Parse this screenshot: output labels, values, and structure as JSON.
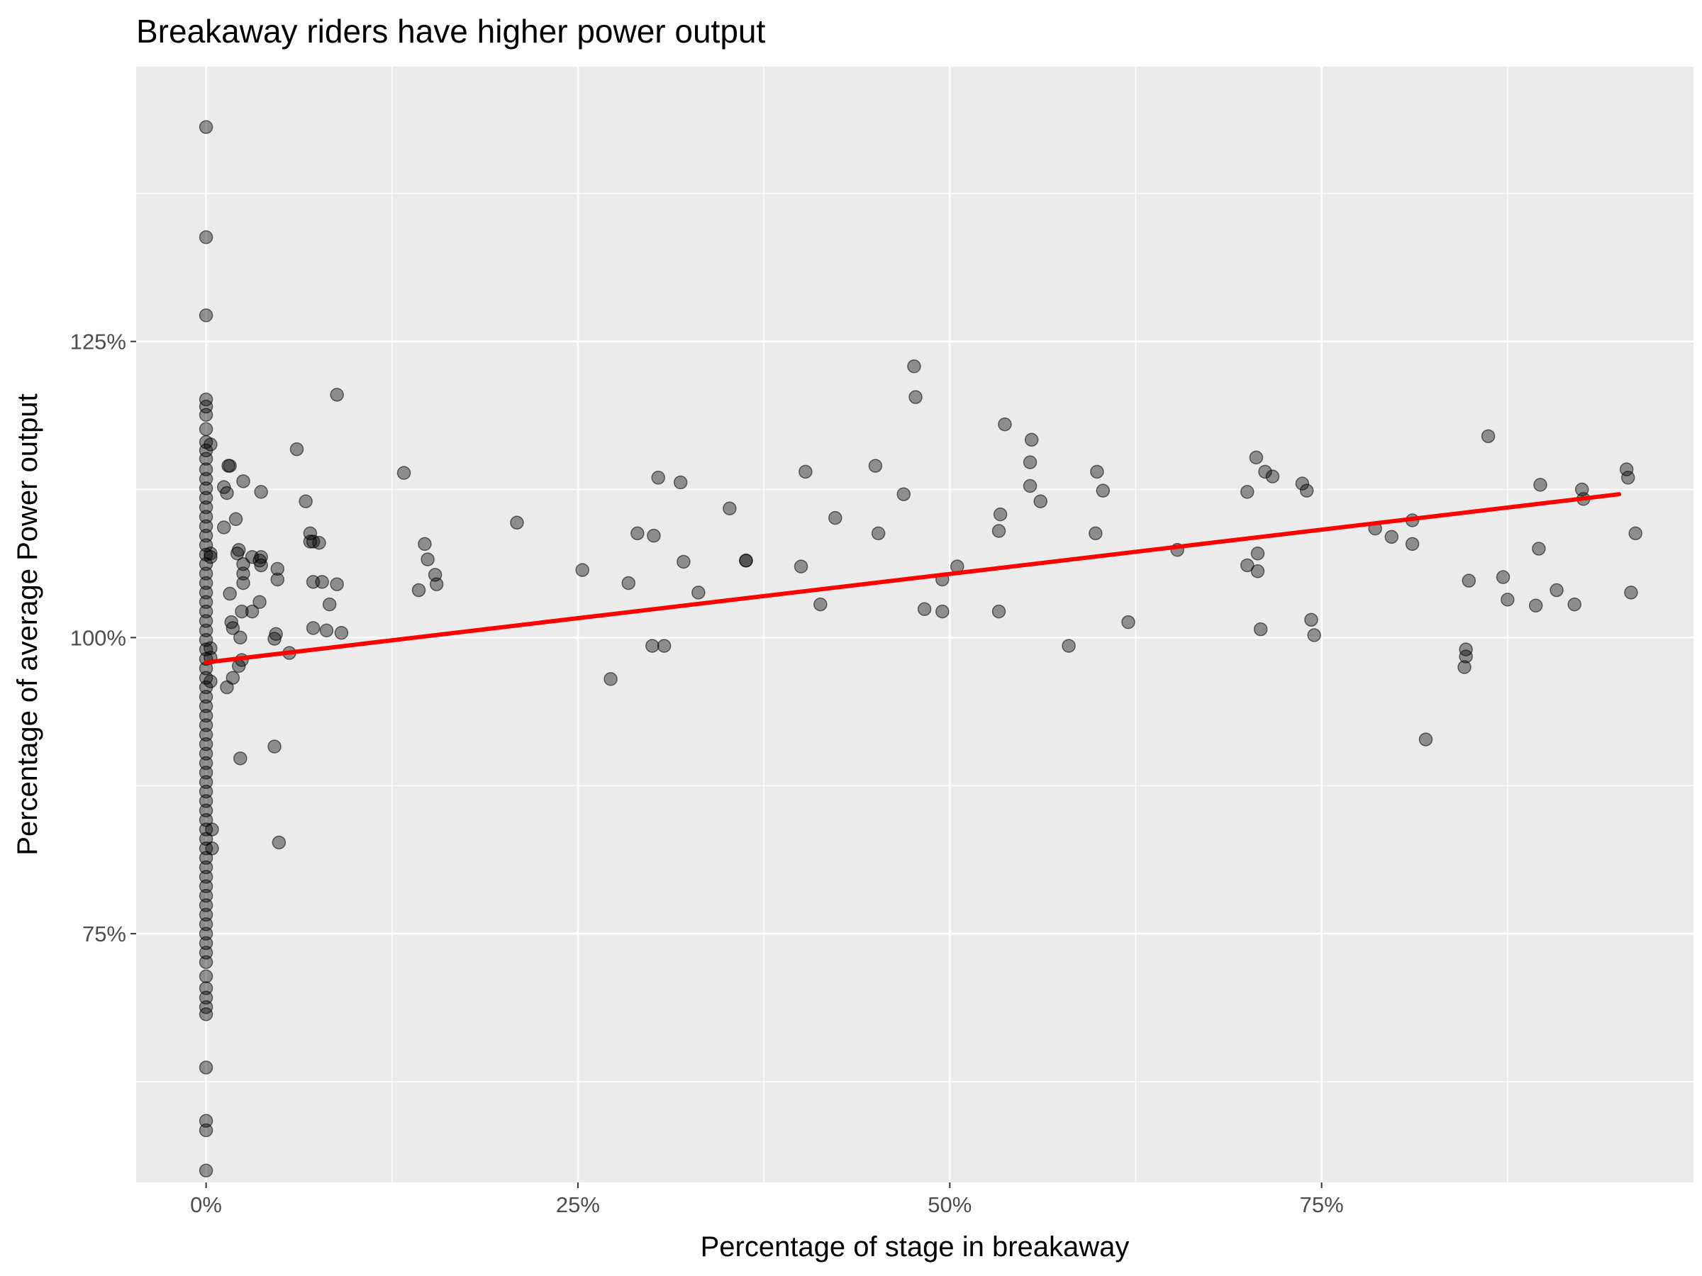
{
  "chart_data": {
    "type": "scatter",
    "title": "Breakaway riders have higher power output",
    "xlabel": "Percentage of stage in breakaway",
    "ylabel": "Percentage of average Power output",
    "xlim": [
      -0.047,
      1.0
    ],
    "ylim": [
      0.54,
      1.482
    ],
    "x_ticks": [
      0,
      0.25,
      0.5,
      0.75
    ],
    "x_tick_labels": [
      "0%",
      "25%",
      "50%",
      "75%"
    ],
    "y_ticks": [
      0.75,
      1.0,
      1.25
    ],
    "y_tick_labels": [
      "75%",
      "100%",
      "125%"
    ],
    "grid": true,
    "legend": "none",
    "colors": {
      "panel": "#ebebeb",
      "grid": "#ffffff",
      "point": "#000000",
      "trend": "#ff0000",
      "axis_text": "#4d4d4d",
      "title_text": "#000000"
    },
    "series": [
      {
        "type": "scatter",
        "alpha": 0.4,
        "points": [
          [
            0.0,
            1.431
          ],
          [
            0.0,
            1.338
          ],
          [
            0.0,
            1.272
          ],
          [
            0.0,
            1.201
          ],
          [
            0.0,
            1.195
          ],
          [
            0.0,
            1.188
          ],
          [
            0.0,
            1.176
          ],
          [
            0.0,
            1.165
          ],
          [
            0.0,
            1.158
          ],
          [
            0.0,
            1.151
          ],
          [
            0.0,
            1.142
          ],
          [
            0.0,
            1.134
          ],
          [
            0.0,
            1.126
          ],
          [
            0.0,
            1.118
          ],
          [
            0.0,
            1.11
          ],
          [
            0.0,
            1.102
          ],
          [
            0.0,
            1.094
          ],
          [
            0.0,
            1.086
          ],
          [
            0.0,
            1.078
          ],
          [
            0.0,
            1.07
          ],
          [
            0.0,
            1.062
          ],
          [
            0.0,
            1.054
          ],
          [
            0.0,
            1.046
          ],
          [
            0.0,
            1.038
          ],
          [
            0.0,
            1.03
          ],
          [
            0.0,
            1.022
          ],
          [
            0.0,
            1.014
          ],
          [
            0.0,
            1.006
          ],
          [
            0.0,
            0.998
          ],
          [
            0.0,
            0.99
          ],
          [
            0.0,
            0.982
          ],
          [
            0.0,
            0.974
          ],
          [
            0.0,
            0.966
          ],
          [
            0.0,
            0.958
          ],
          [
            0.0,
            0.95
          ],
          [
            0.0,
            0.942
          ],
          [
            0.0,
            0.934
          ],
          [
            0.0,
            0.926
          ],
          [
            0.0,
            0.918
          ],
          [
            0.0,
            0.91
          ],
          [
            0.0,
            0.902
          ],
          [
            0.0,
            0.894
          ],
          [
            0.0,
            0.886
          ],
          [
            0.0,
            0.878
          ],
          [
            0.0,
            0.87
          ],
          [
            0.0,
            0.862
          ],
          [
            0.0,
            0.854
          ],
          [
            0.0,
            0.846
          ],
          [
            0.0,
            0.838
          ],
          [
            0.0,
            0.83
          ],
          [
            0.0,
            0.822
          ],
          [
            0.0,
            0.814
          ],
          [
            0.0,
            0.806
          ],
          [
            0.0,
            0.798
          ],
          [
            0.0,
            0.79
          ],
          [
            0.0,
            0.782
          ],
          [
            0.0,
            0.774
          ],
          [
            0.0,
            0.766
          ],
          [
            0.0,
            0.758
          ],
          [
            0.0,
            0.75
          ],
          [
            0.0,
            0.742
          ],
          [
            0.0,
            0.734
          ],
          [
            0.0,
            0.726
          ],
          [
            0.0,
            0.714
          ],
          [
            0.0,
            0.704
          ],
          [
            0.0,
            0.696
          ],
          [
            0.0,
            0.688
          ],
          [
            0.0,
            0.682
          ],
          [
            0.0,
            0.637
          ],
          [
            0.0,
            0.592
          ],
          [
            0.0,
            0.584
          ],
          [
            0.0,
            0.55
          ],
          [
            0.003,
            1.163
          ],
          [
            0.003,
            1.071
          ],
          [
            0.003,
            1.068
          ],
          [
            0.003,
            0.991
          ],
          [
            0.003,
            0.983
          ],
          [
            0.003,
            0.963
          ],
          [
            0.004,
            0.838
          ],
          [
            0.004,
            0.822
          ],
          [
            0.012,
            1.127
          ],
          [
            0.012,
            1.093
          ],
          [
            0.014,
            1.122
          ],
          [
            0.014,
            0.958
          ],
          [
            0.015,
            1.145
          ],
          [
            0.016,
            1.145
          ],
          [
            0.016,
            1.037
          ],
          [
            0.017,
            1.013
          ],
          [
            0.018,
            1.008
          ],
          [
            0.018,
            0.966
          ],
          [
            0.02,
            1.1
          ],
          [
            0.021,
            1.071
          ],
          [
            0.022,
            1.074
          ],
          [
            0.022,
            0.976
          ],
          [
            0.023,
            1.0
          ],
          [
            0.023,
            0.898
          ],
          [
            0.024,
            0.981
          ],
          [
            0.025,
            1.132
          ],
          [
            0.025,
            1.062
          ],
          [
            0.025,
            1.054
          ],
          [
            0.025,
            1.046
          ],
          [
            0.024,
            1.022
          ],
          [
            0.031,
            1.068
          ],
          [
            0.031,
            1.022
          ],
          [
            0.036,
            1.065
          ],
          [
            0.036,
            1.03
          ],
          [
            0.037,
            1.123
          ],
          [
            0.037,
            1.068
          ],
          [
            0.037,
            1.061
          ],
          [
            0.046,
            0.999
          ],
          [
            0.046,
            0.908
          ],
          [
            0.047,
            1.003
          ],
          [
            0.048,
            1.058
          ],
          [
            0.048,
            1.049
          ],
          [
            0.049,
            0.827
          ],
          [
            0.056,
            0.987
          ],
          [
            0.061,
            1.159
          ],
          [
            0.067,
            1.115
          ],
          [
            0.07,
            1.088
          ],
          [
            0.07,
            1.081
          ],
          [
            0.072,
            1.081
          ],
          [
            0.072,
            1.047
          ],
          [
            0.072,
            1.008
          ],
          [
            0.076,
            1.08
          ],
          [
            0.078,
            1.047
          ],
          [
            0.081,
            1.006
          ],
          [
            0.083,
            1.028
          ],
          [
            0.088,
            1.205
          ],
          [
            0.088,
            1.045
          ],
          [
            0.091,
            1.004
          ],
          [
            0.133,
            1.139
          ],
          [
            0.143,
            1.04
          ],
          [
            0.147,
            1.079
          ],
          [
            0.149,
            1.066
          ],
          [
            0.154,
            1.053
          ],
          [
            0.155,
            1.045
          ],
          [
            0.209,
            1.097
          ],
          [
            0.253,
            1.057
          ],
          [
            0.272,
            0.965
          ],
          [
            0.284,
            1.046
          ],
          [
            0.29,
            1.088
          ],
          [
            0.3,
            0.993
          ],
          [
            0.301,
            1.086
          ],
          [
            0.304,
            1.135
          ],
          [
            0.308,
            0.993
          ],
          [
            0.319,
            1.131
          ],
          [
            0.321,
            1.064
          ],
          [
            0.331,
            1.038
          ],
          [
            0.352,
            1.109
          ],
          [
            0.363,
            1.065
          ],
          [
            0.363,
            1.065
          ],
          [
            0.4,
            1.06
          ],
          [
            0.403,
            1.14
          ],
          [
            0.413,
            1.028
          ],
          [
            0.423,
            1.101
          ],
          [
            0.45,
            1.145
          ],
          [
            0.452,
            1.088
          ],
          [
            0.469,
            1.121
          ],
          [
            0.476,
            1.229
          ],
          [
            0.477,
            1.203
          ],
          [
            0.483,
            1.024
          ],
          [
            0.495,
            1.022
          ],
          [
            0.495,
            1.049
          ],
          [
            0.505,
            1.06
          ],
          [
            0.533,
            1.022
          ],
          [
            0.533,
            1.09
          ],
          [
            0.534,
            1.104
          ],
          [
            0.537,
            1.18
          ],
          [
            0.554,
            1.148
          ],
          [
            0.554,
            1.128
          ],
          [
            0.555,
            1.167
          ],
          [
            0.561,
            1.115
          ],
          [
            0.58,
            0.993
          ],
          [
            0.598,
            1.088
          ],
          [
            0.599,
            1.14
          ],
          [
            0.603,
            1.124
          ],
          [
            0.62,
            1.013
          ],
          [
            0.653,
            1.074
          ],
          [
            0.7,
            1.061
          ],
          [
            0.7,
            1.123
          ],
          [
            0.706,
            1.152
          ],
          [
            0.707,
            1.071
          ],
          [
            0.707,
            1.056
          ],
          [
            0.709,
            1.007
          ],
          [
            0.712,
            1.14
          ],
          [
            0.717,
            1.136
          ],
          [
            0.737,
            1.13
          ],
          [
            0.74,
            1.124
          ],
          [
            0.743,
            1.015
          ],
          [
            0.745,
            1.002
          ],
          [
            0.786,
            1.092
          ],
          [
            0.797,
            1.085
          ],
          [
            0.811,
            1.079
          ],
          [
            0.811,
            1.099
          ],
          [
            0.82,
            0.914
          ],
          [
            0.846,
            0.975
          ],
          [
            0.847,
            0.99
          ],
          [
            0.847,
            0.984
          ],
          [
            0.849,
            1.048
          ],
          [
            0.862,
            1.17
          ],
          [
            0.872,
            1.051
          ],
          [
            0.875,
            1.032
          ],
          [
            0.894,
            1.027
          ],
          [
            0.896,
            1.075
          ],
          [
            0.897,
            1.129
          ],
          [
            0.908,
            1.04
          ],
          [
            0.92,
            1.028
          ],
          [
            0.925,
            1.125
          ],
          [
            0.926,
            1.117
          ],
          [
            0.955,
            1.142
          ],
          [
            0.956,
            1.135
          ],
          [
            0.958,
            1.038
          ],
          [
            0.961,
            1.088
          ]
        ]
      },
      {
        "type": "line",
        "points": [
          [
            0.0,
            0.979
          ],
          [
            0.95,
            1.121
          ]
        ]
      }
    ]
  }
}
